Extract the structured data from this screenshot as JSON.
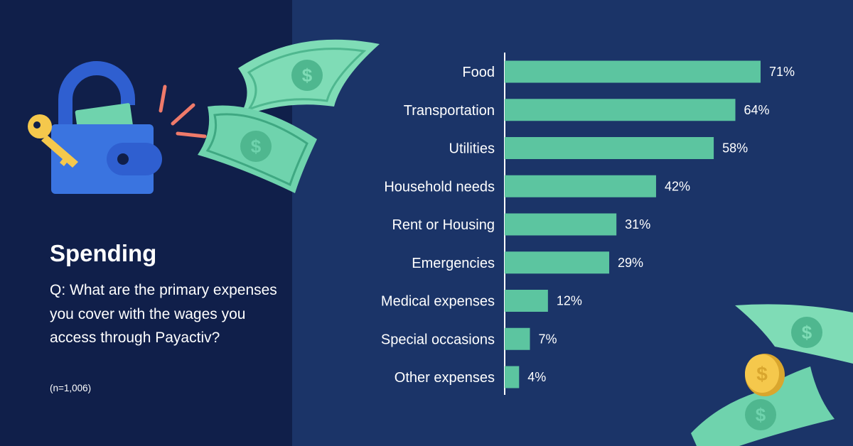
{
  "panel": {
    "title": "Spending",
    "question": "Q: What are the primary expenses you cover with the wages you access through Payactiv?",
    "sample_note": "(n=1,006)"
  },
  "icons": [
    "padlock-wallet-icon",
    "key-icon",
    "flying-banknote-icon",
    "coin-icon"
  ],
  "colors": {
    "left_background": "#101f4a",
    "right_background": "#1b3468",
    "bar": "#5cc5a0",
    "text": "#ffffff"
  },
  "chart_data": {
    "type": "bar",
    "orientation": "horizontal",
    "categories": [
      "Food",
      "Transportation",
      "Utilities",
      "Household needs",
      "Rent or Housing",
      "Emergencies",
      "Medical expenses",
      "Special occasions",
      "Other expenses"
    ],
    "values": [
      71,
      64,
      58,
      42,
      31,
      29,
      12,
      7,
      4
    ],
    "value_labels": [
      "71%",
      "64%",
      "58%",
      "42%",
      "31%",
      "29%",
      "12%",
      "7%",
      "4%"
    ],
    "unit": "%",
    "xlim": [
      0,
      80
    ],
    "grid": false,
    "legend": "none"
  }
}
